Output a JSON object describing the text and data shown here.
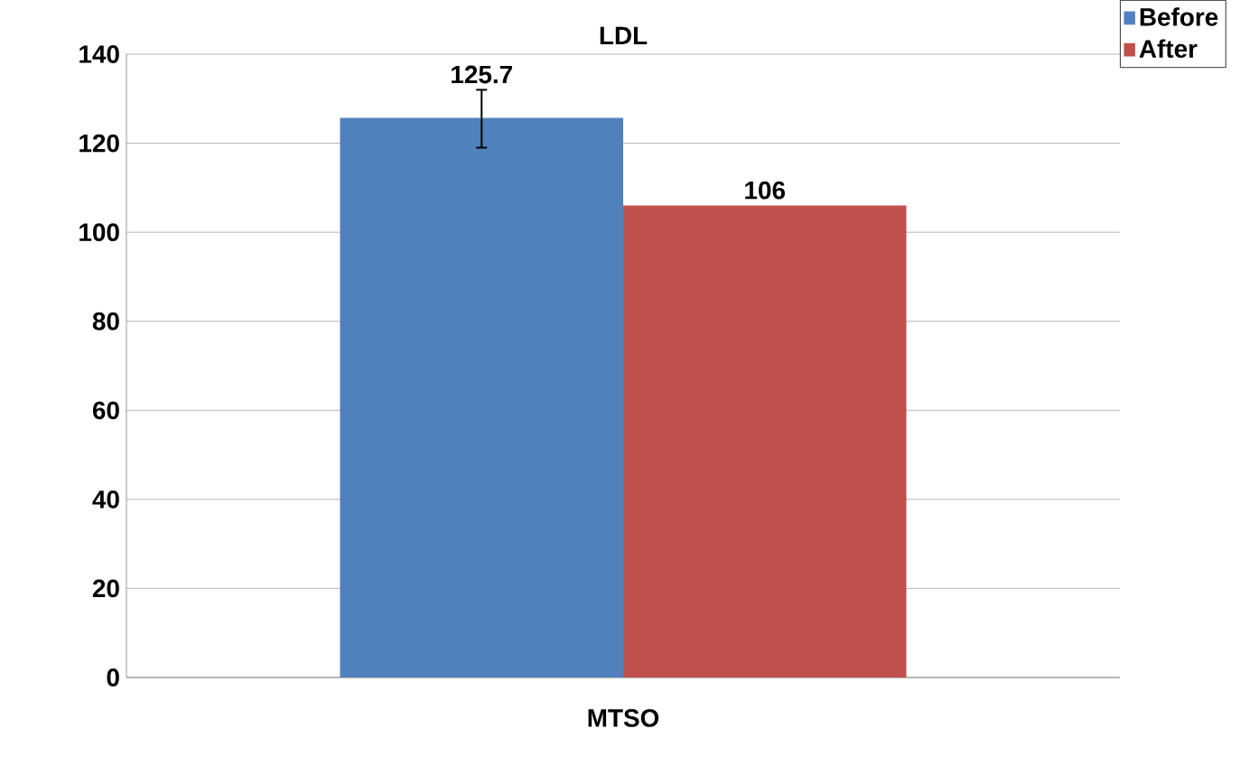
{
  "chart_data": {
    "type": "bar",
    "title": "LDL",
    "categories": [
      "MTSO"
    ],
    "series": [
      {
        "name": "Before",
        "color": "#4f81bd",
        "values": [
          125.7
        ],
        "errors": [
          [
            119,
            132
          ]
        ]
      },
      {
        "name": "After",
        "color": "#c0504d",
        "values": [
          106
        ]
      }
    ],
    "ylim": [
      0,
      140
    ],
    "yticks": [
      0,
      20,
      40,
      60,
      80,
      100,
      120,
      140
    ],
    "grid": "y",
    "legend": "top right",
    "data_labels": true
  }
}
